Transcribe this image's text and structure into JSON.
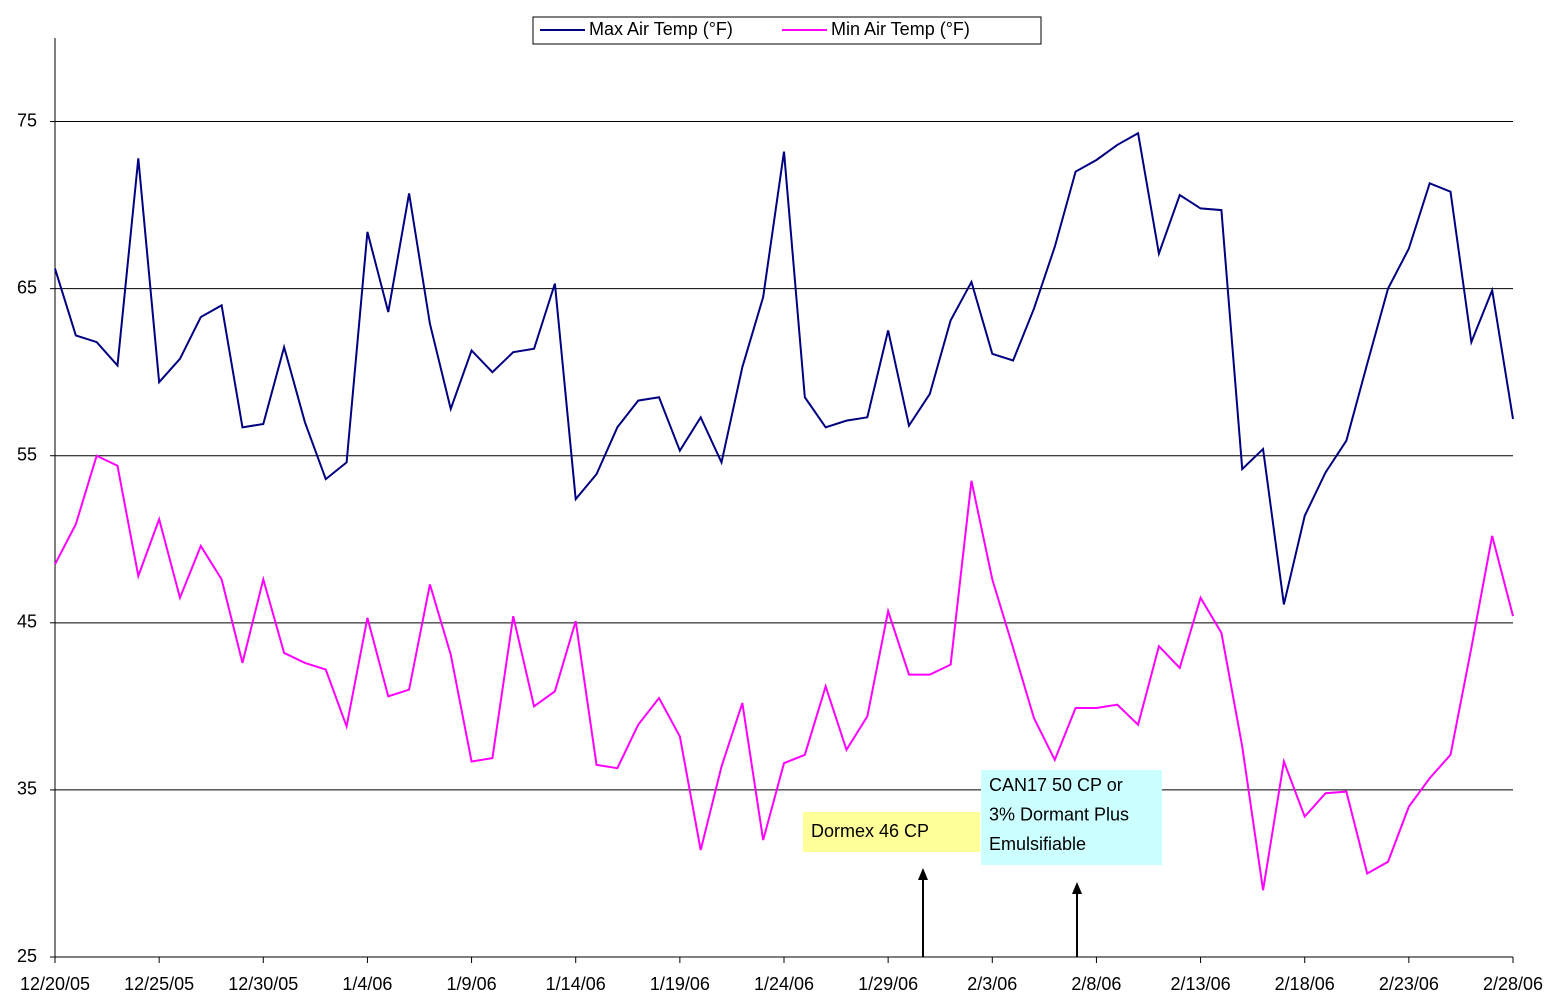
{
  "chart_data": {
    "type": "line",
    "categories": [
      "12/20/05",
      null,
      null,
      null,
      null,
      "12/25/05",
      null,
      null,
      null,
      null,
      "12/30/05",
      null,
      null,
      null,
      null,
      "1/4/06",
      null,
      null,
      null,
      null,
      "1/9/06",
      null,
      null,
      null,
      null,
      "1/14/06",
      null,
      null,
      null,
      null,
      "1/19/06",
      null,
      null,
      null,
      null,
      "1/24/06",
      null,
      null,
      null,
      null,
      "1/29/06",
      null,
      null,
      null,
      null,
      "2/3/06",
      null,
      null,
      null,
      null,
      "2/8/06",
      null,
      null,
      null,
      null,
      "2/13/06",
      null,
      null,
      null,
      null,
      "2/18/06",
      null,
      null,
      null,
      null,
      "2/23/06",
      null,
      null,
      null,
      null,
      "2/28/06"
    ],
    "series": [
      {
        "name": "Max Air Temp (°F)",
        "color": "#000080",
        "values": [
          66.2,
          62.2,
          61.8,
          60.4,
          72.8,
          59.4,
          60.8,
          63.3,
          64,
          56.7,
          56.9,
          61.5,
          57,
          53.6,
          54.6,
          68.4,
          63.6,
          70.7,
          62.9,
          57.8,
          61.3,
          60,
          61.2,
          61.4,
          65.3,
          52.4,
          53.9,
          56.7,
          58.3,
          58.5,
          55.3,
          57.3,
          54.6,
          60.3,
          64.5,
          73.2,
          58.5,
          56.7,
          57.1,
          57.3,
          62.5,
          56.8,
          58.7,
          63.1,
          65.4,
          61.1,
          60.7,
          63.8,
          67.5,
          72,
          72.7,
          73.6,
          74.3,
          67.1,
          70.6,
          69.8,
          69.7,
          54.2,
          55.4,
          46.1,
          51.4,
          54,
          55.9,
          60.5,
          65,
          67.4,
          71.3,
          70.8,
          61.8,
          64.9,
          57.2
        ]
      },
      {
        "name": "Min Air Temp (°F)",
        "color": "#ff00ff",
        "values": [
          48.5,
          50.9,
          55,
          54.4,
          47.8,
          51.2,
          46.5,
          49.6,
          47.6,
          42.6,
          47.6,
          43.2,
          42.6,
          42.2,
          38.8,
          45.3,
          40.6,
          41,
          47.3,
          43.1,
          36.7,
          36.9,
          45.4,
          40,
          40.9,
          45.1,
          36.5,
          36.3,
          38.9,
          40.5,
          38.2,
          31.4,
          36.4,
          40.2,
          32,
          36.6,
          37.1,
          41.2,
          37.4,
          39.4,
          45.7,
          41.9,
          41.9,
          42.5,
          53.5,
          47.6,
          43.5,
          39.3,
          36.8,
          39.9,
          39.9,
          40.1,
          38.9,
          43.6,
          42.3,
          46.5,
          44.4,
          37.6,
          29,
          36.7,
          33.4,
          34.8,
          34.9,
          30,
          30.7,
          34,
          35.7,
          37.1,
          43.5,
          50.2,
          45.4
        ]
      }
    ],
    "ylim": [
      25,
      80
    ],
    "yticks": [
      25,
      35,
      45,
      55,
      65,
      75
    ],
    "grid": true,
    "legend": "top",
    "annotations": [
      {
        "lines": [
          "Dormex 46 CP"
        ],
        "color": "#ffff99"
      },
      {
        "lines": [
          "CAN17 50 CP or",
          "3% Dormant Plus",
          "Emulsifiable"
        ],
        "color": "#ccffff"
      }
    ]
  }
}
